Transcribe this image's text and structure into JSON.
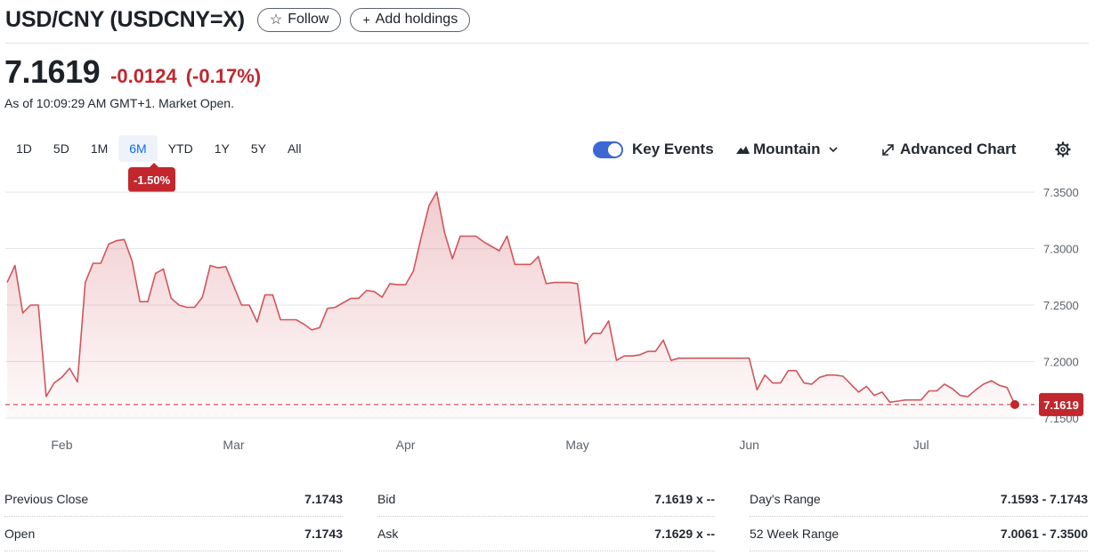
{
  "header": {
    "title": "USD/CNY (USDCNY=X)",
    "follow_label": "Follow",
    "follow_icon": "☆",
    "add_holdings_label": "Add holdings",
    "add_icon": "+"
  },
  "quote": {
    "price": "7.1619",
    "change": "-0.0124",
    "change_pct": "(-0.17%)",
    "as_of": "As of 10:09:29 AM GMT+1. Market Open."
  },
  "ranges": [
    "1D",
    "5D",
    "1M",
    "6M",
    "YTD",
    "1Y",
    "5Y",
    "All"
  ],
  "active_range": "6M",
  "range_change_badge": "-1.50%",
  "toolbar": {
    "key_events_label": "Key Events",
    "key_events_on": true,
    "chart_type_label": "Mountain",
    "advanced_chart_label": "Advanced Chart"
  },
  "colors": {
    "accent_blue": "#0f69ff",
    "negative_red": "#c1272d",
    "line_red": "#d1555c"
  },
  "chart_data": {
    "type": "area",
    "x_labels": [
      "Feb",
      "Mar",
      "Apr",
      "May",
      "Jun",
      "Jul"
    ],
    "x_label_index": [
      7,
      29,
      51,
      73,
      95,
      117
    ],
    "y_ticks": [
      "7.3500",
      "7.3000",
      "7.2500",
      "7.2000",
      "7.1500"
    ],
    "ylim": [
      7.15,
      7.35
    ],
    "last_value_label": "7.1619",
    "last_value": 7.1619,
    "values": [
      7.27,
      7.285,
      7.243,
      7.25,
      7.25,
      7.169,
      7.181,
      7.186,
      7.194,
      7.182,
      7.27,
      7.287,
      7.287,
      7.304,
      7.307,
      7.308,
      7.289,
      7.253,
      7.253,
      7.278,
      7.282,
      7.256,
      7.25,
      7.248,
      7.248,
      7.257,
      7.285,
      7.283,
      7.284,
      7.267,
      7.25,
      7.25,
      7.235,
      7.259,
      7.259,
      7.237,
      7.237,
      7.237,
      7.233,
      7.228,
      7.23,
      7.247,
      7.248,
      7.252,
      7.256,
      7.256,
      7.263,
      7.262,
      7.257,
      7.269,
      7.268,
      7.268,
      7.28,
      7.31,
      7.338,
      7.35,
      7.314,
      7.291,
      7.311,
      7.311,
      7.311,
      7.306,
      7.302,
      7.298,
      7.311,
      7.286,
      7.286,
      7.286,
      7.293,
      7.269,
      7.27,
      7.27,
      7.27,
      7.269,
      7.216,
      7.225,
      7.225,
      7.236,
      7.201,
      7.205,
      7.205,
      7.206,
      7.209,
      7.209,
      7.219,
      7.201,
      7.203,
      7.203,
      7.203,
      7.203,
      7.203,
      7.203,
      7.203,
      7.203,
      7.203,
      7.203,
      7.175,
      7.188,
      7.181,
      7.181,
      7.192,
      7.192,
      7.181,
      7.18,
      7.186,
      7.188,
      7.188,
      7.187,
      7.18,
      7.173,
      7.178,
      7.17,
      7.173,
      7.164,
      7.165,
      7.166,
      7.166,
      7.166,
      7.174,
      7.174,
      7.18,
      7.176,
      7.17,
      7.169,
      7.175,
      7.18,
      7.183,
      7.179,
      7.177,
      7.1619
    ],
    "grid": true,
    "legend": "none"
  },
  "stats": [
    [
      {
        "label": "Previous Close",
        "value": "7.1743"
      },
      {
        "label": "Bid",
        "value": "7.1619 x --"
      },
      {
        "label": "Day's Range",
        "value": "7.1593 - 7.1743"
      }
    ],
    [
      {
        "label": "Open",
        "value": "7.1743"
      },
      {
        "label": "Ask",
        "value": "7.1629 x --"
      },
      {
        "label": "52 Week Range",
        "value": "7.0061 - 7.3500"
      }
    ]
  ]
}
